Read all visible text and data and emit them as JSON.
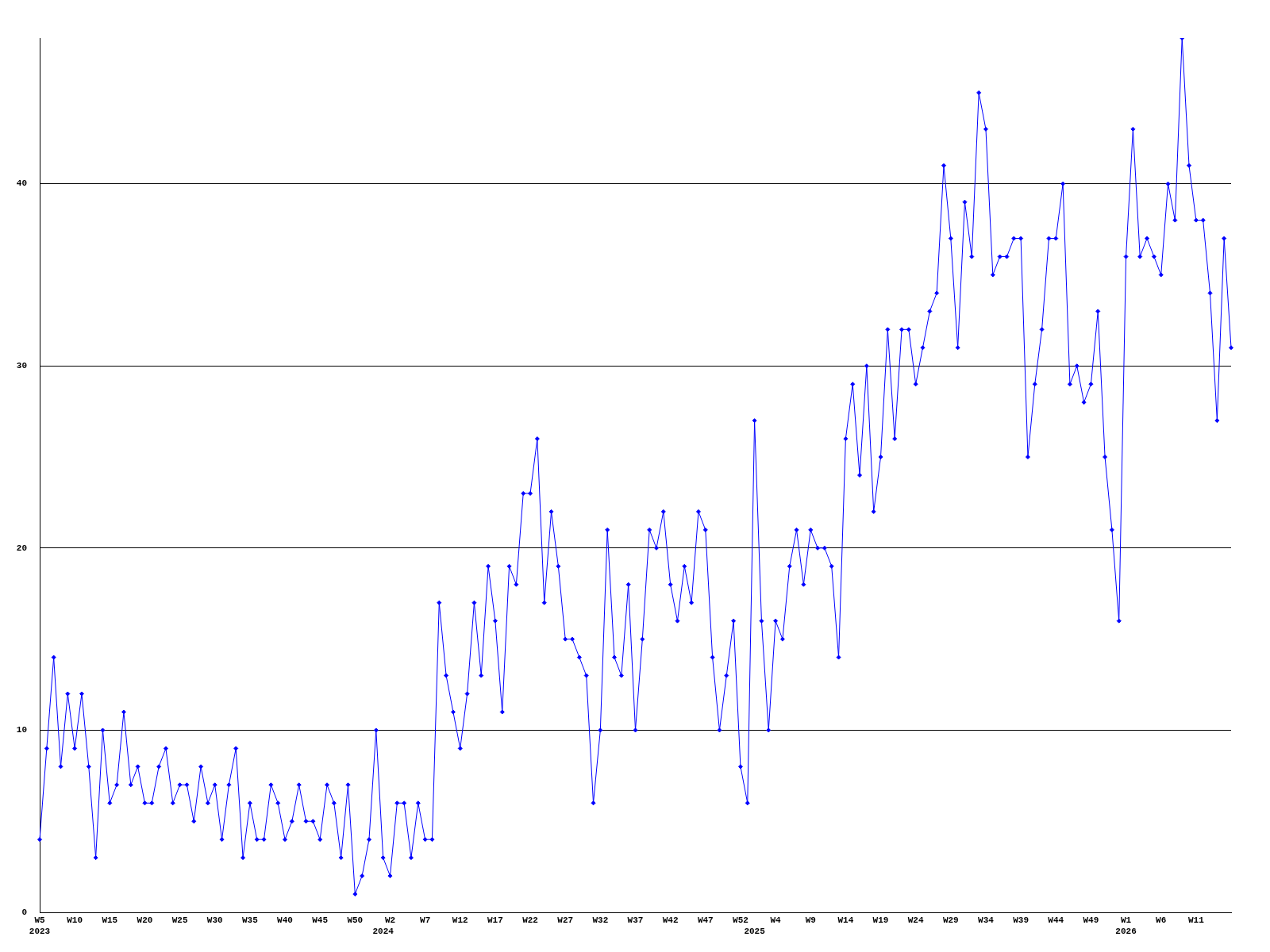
{
  "chart_data": {
    "type": "line",
    "categories": [
      "W5\n2023",
      null,
      null,
      null,
      null,
      "W10",
      null,
      null,
      null,
      null,
      "W15",
      null,
      null,
      null,
      null,
      "W20",
      null,
      null,
      null,
      null,
      "W25",
      null,
      null,
      null,
      null,
      "W30",
      null,
      null,
      null,
      null,
      "W35",
      null,
      null,
      null,
      null,
      "W40",
      null,
      null,
      null,
      null,
      "W45",
      null,
      null,
      null,
      null,
      "W50",
      null,
      null,
      null,
      "\n2024",
      "W2",
      null,
      null,
      null,
      null,
      "W7",
      null,
      null,
      null,
      null,
      "W12",
      null,
      null,
      null,
      null,
      "W17",
      null,
      null,
      null,
      null,
      "W22",
      null,
      null,
      null,
      null,
      "W27",
      null,
      null,
      null,
      null,
      "W32",
      null,
      null,
      null,
      null,
      "W37",
      null,
      null,
      null,
      null,
      "W42",
      null,
      null,
      null,
      null,
      "W47",
      null,
      null,
      null,
      null,
      "W52",
      null,
      "\n2025",
      null,
      null,
      "W4",
      null,
      null,
      null,
      null,
      "W9",
      null,
      null,
      null,
      null,
      "W14",
      null,
      null,
      null,
      null,
      "W19",
      null,
      null,
      null,
      null,
      "W24",
      null,
      null,
      null,
      null,
      "W29",
      null,
      null,
      null,
      null,
      "W34",
      null,
      null,
      null,
      null,
      "W39",
      null,
      null,
      null,
      null,
      "W44",
      null,
      null,
      null,
      null,
      "W49",
      null,
      null,
      null,
      null,
      "W1\n2026",
      null,
      null,
      null,
      null,
      "W6",
      null,
      null,
      null,
      null,
      "W11",
      null,
      null,
      null,
      null,
      null
    ],
    "values": [
      4,
      9,
      14,
      8,
      12,
      9,
      12,
      8,
      3,
      10,
      6,
      7,
      11,
      7,
      8,
      6,
      6,
      8,
      9,
      6,
      7,
      7,
      5,
      8,
      6,
      7,
      4,
      7,
      9,
      3,
      6,
      4,
      4,
      7,
      6,
      4,
      5,
      7,
      5,
      5,
      4,
      7,
      6,
      3,
      7,
      1,
      2,
      4,
      10,
      3,
      2,
      6,
      6,
      3,
      6,
      4,
      4,
      17,
      13,
      11,
      9,
      12,
      17,
      13,
      19,
      16,
      11,
      19,
      18,
      23,
      23,
      26,
      17,
      22,
      19,
      15,
      15,
      14,
      13,
      6,
      10,
      21,
      14,
      13,
      18,
      10,
      15,
      21,
      20,
      22,
      18,
      16,
      19,
      17,
      22,
      21,
      14,
      10,
      13,
      16,
      8,
      6,
      27,
      16,
      10,
      16,
      15,
      19,
      21,
      18,
      21,
      20,
      20,
      19,
      14,
      26,
      29,
      24,
      30,
      22,
      25,
      32,
      26,
      32,
      32,
      29,
      31,
      33,
      34,
      41,
      37,
      31,
      39,
      36,
      45,
      43,
      35,
      36,
      36,
      37,
      37,
      25,
      29,
      32,
      37,
      37,
      40,
      29,
      30,
      28,
      29,
      33,
      25,
      21,
      16,
      36,
      43,
      36,
      37,
      36,
      35,
      40,
      38,
      48,
      41,
      38,
      38,
      34,
      27,
      37,
      31
    ],
    "color": "#0000ff",
    "ylim": [
      0,
      48
    ],
    "yticks": [
      0,
      10,
      20,
      30,
      40
    ],
    "grid": "y",
    "marker": "diamond"
  }
}
